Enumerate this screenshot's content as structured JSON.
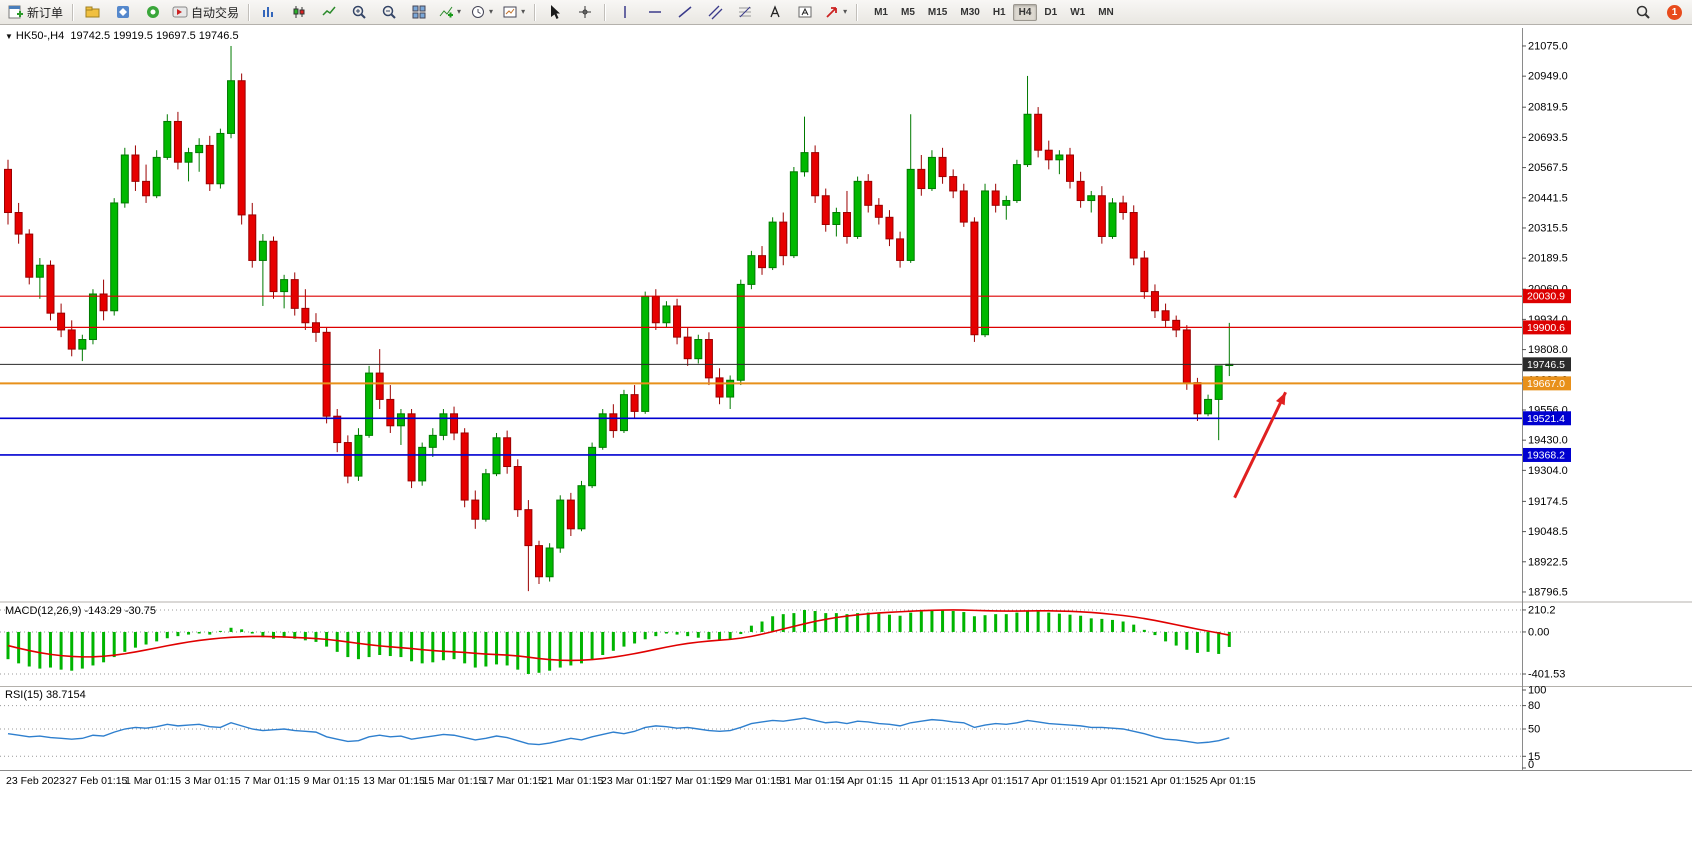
{
  "toolbar": {
    "new_order_label": "新订单",
    "auto_trading_label": "自动交易",
    "timeframes": [
      "M1",
      "M5",
      "M15",
      "M30",
      "H1",
      "H4",
      "D1",
      "W1",
      "MN"
    ],
    "active_timeframe": "H4",
    "notification_count": "1"
  },
  "icons": {
    "symbol_marker": "▼",
    "caret": "▾"
  },
  "symbol_info": {
    "symbol": "HK50-,H4",
    "ohlc": "19742.5 19919.5 19697.5 19746.5"
  },
  "chart_data": [
    {
      "type": "candlestick",
      "title": "HK50-,H4",
      "columns": [
        "open",
        "high",
        "low",
        "close"
      ],
      "ylim": [
        18763,
        21150
      ],
      "colors": {
        "up": "#00b800",
        "up_border": "#007a00",
        "down": "#e60000",
        "down_border": "#9b0000"
      },
      "y_ticks": [
        "21075.0",
        "20949.0",
        "20819.5",
        "20693.5",
        "20567.5",
        "20441.5",
        "20315.5",
        "20189.5",
        "20060.0",
        "19934.0",
        "19808.0",
        "19682.0",
        "19556.0",
        "19430.0",
        "19304.0",
        "19174.5",
        "19048.5",
        "18922.5",
        "18796.5"
      ],
      "x_labels": [
        "23 Feb 2023",
        "27 Feb 01:15",
        "1 Mar 01:15",
        "3 Mar 01:15",
        "7 Mar 01:15",
        "9 Mar 01:15",
        "13 Mar 01:15",
        "15 Mar 01:15",
        "17 Mar 01:15",
        "21 Mar 01:15",
        "23 Mar 01:15",
        "27 Mar 01:15",
        "29 Mar 01:15",
        "31 Mar 01:15",
        "4 Apr 01:15",
        "11 Apr 01:15",
        "13 Apr 01:15",
        "17 Apr 01:15",
        "19 Apr 01:15",
        "21 Apr 01:15",
        "25 Apr 01:15"
      ],
      "hlines": [
        {
          "price": 20030.9,
          "label": "20030.9",
          "color": "#dd0000",
          "width": 1.2
        },
        {
          "price": 19900.6,
          "label": "19900.6",
          "color": "#dd0000",
          "width": 1.2
        },
        {
          "price": 19746.5,
          "label": "19746.5",
          "color": "#2a2a2a",
          "width": 1,
          "role": "last-price"
        },
        {
          "price": 19667.0,
          "label": "19667.0",
          "color": "#e8901a",
          "width": 2
        },
        {
          "price": 19521.4,
          "label": "19521.4",
          "color": "#0000d0",
          "width": 1.6
        },
        {
          "price": 19368.2,
          "label": "19368.2",
          "color": "#0000d0",
          "width": 1.6
        }
      ],
      "arrow": {
        "i1": 115.5,
        "p1": 19190,
        "i2": 120.3,
        "p2": 19630,
        "color": "#e02020"
      },
      "ohlc": [
        [
          20560,
          20600,
          20330,
          20380
        ],
        [
          20380,
          20420,
          20250,
          20290
        ],
        [
          20290,
          20310,
          20080,
          20110
        ],
        [
          20110,
          20190,
          20020,
          20160
        ],
        [
          20160,
          20180,
          19930,
          19960
        ],
        [
          19960,
          20000,
          19860,
          19890
        ],
        [
          19890,
          19930,
          19780,
          19810
        ],
        [
          19810,
          19870,
          19760,
          19850
        ],
        [
          19850,
          20060,
          19830,
          20040
        ],
        [
          20040,
          20100,
          19930,
          19970
        ],
        [
          19970,
          20440,
          19950,
          20420
        ],
        [
          20420,
          20650,
          20400,
          20620
        ],
        [
          20620,
          20660,
          20470,
          20510
        ],
        [
          20510,
          20580,
          20420,
          20450
        ],
        [
          20450,
          20640,
          20440,
          20610
        ],
        [
          20610,
          20790,
          20600,
          20760
        ],
        [
          20760,
          20800,
          20560,
          20590
        ],
        [
          20590,
          20650,
          20510,
          20630
        ],
        [
          20630,
          20690,
          20550,
          20660
        ],
        [
          20660,
          20700,
          20470,
          20500
        ],
        [
          20500,
          20730,
          20480,
          20710
        ],
        [
          20710,
          21075,
          20690,
          20930
        ],
        [
          20930,
          20960,
          20330,
          20370
        ],
        [
          20370,
          20420,
          20150,
          20180
        ],
        [
          20180,
          20290,
          19990,
          20260
        ],
        [
          20260,
          20280,
          20020,
          20050
        ],
        [
          20050,
          20120,
          19980,
          20100
        ],
        [
          20100,
          20130,
          19950,
          19980
        ],
        [
          19980,
          20060,
          19890,
          19920
        ],
        [
          19920,
          19960,
          19840,
          19880
        ],
        [
          19880,
          19900,
          19500,
          19530
        ],
        [
          19530,
          19560,
          19380,
          19420
        ],
        [
          19420,
          19450,
          19250,
          19280
        ],
        [
          19280,
          19480,
          19260,
          19450
        ],
        [
          19450,
          19740,
          19440,
          19710
        ],
        [
          19710,
          19810,
          19560,
          19600
        ],
        [
          19600,
          19660,
          19460,
          19490
        ],
        [
          19490,
          19560,
          19410,
          19540
        ],
        [
          19540,
          19560,
          19230,
          19260
        ],
        [
          19260,
          19420,
          19240,
          19400
        ],
        [
          19400,
          19480,
          19360,
          19450
        ],
        [
          19450,
          19560,
          19430,
          19540
        ],
        [
          19540,
          19570,
          19430,
          19460
        ],
        [
          19460,
          19480,
          19150,
          19180
        ],
        [
          19180,
          19220,
          19060,
          19100
        ],
        [
          19100,
          19310,
          19090,
          19290
        ],
        [
          19290,
          19460,
          19280,
          19440
        ],
        [
          19440,
          19470,
          19290,
          19320
        ],
        [
          19320,
          19350,
          19110,
          19140
        ],
        [
          19140,
          19180,
          18800,
          18990
        ],
        [
          18990,
          19010,
          18830,
          18860
        ],
        [
          18860,
          19000,
          18840,
          18980
        ],
        [
          18980,
          19200,
          18960,
          19180
        ],
        [
          19180,
          19210,
          19030,
          19060
        ],
        [
          19060,
          19260,
          19050,
          19240
        ],
        [
          19240,
          19420,
          19230,
          19400
        ],
        [
          19400,
          19560,
          19390,
          19540
        ],
        [
          19540,
          19580,
          19440,
          19470
        ],
        [
          19470,
          19640,
          19460,
          19620
        ],
        [
          19620,
          19660,
          19520,
          19550
        ],
        [
          19550,
          20050,
          19540,
          20030
        ],
        [
          20030,
          20060,
          19890,
          19920
        ],
        [
          19920,
          20010,
          19900,
          19990
        ],
        [
          19990,
          20020,
          19830,
          19860
        ],
        [
          19860,
          19900,
          19740,
          19770
        ],
        [
          19770,
          19870,
          19750,
          19850
        ],
        [
          19850,
          19880,
          19660,
          19690
        ],
        [
          19690,
          19730,
          19580,
          19610
        ],
        [
          19610,
          19700,
          19560,
          19680
        ],
        [
          19680,
          20100,
          19660,
          20080
        ],
        [
          20080,
          20220,
          20060,
          20200
        ],
        [
          20200,
          20240,
          20120,
          20150
        ],
        [
          20150,
          20360,
          20140,
          20340
        ],
        [
          20340,
          20380,
          20160,
          20200
        ],
        [
          20200,
          20570,
          20190,
          20550
        ],
        [
          20550,
          20780,
          20530,
          20630
        ],
        [
          20630,
          20660,
          20420,
          20450
        ],
        [
          20450,
          20480,
          20300,
          20330
        ],
        [
          20330,
          20400,
          20280,
          20380
        ],
        [
          20380,
          20470,
          20250,
          20280
        ],
        [
          20280,
          20530,
          20270,
          20510
        ],
        [
          20510,
          20540,
          20380,
          20410
        ],
        [
          20410,
          20440,
          20330,
          20360
        ],
        [
          20360,
          20390,
          20240,
          20270
        ],
        [
          20270,
          20300,
          20150,
          20180
        ],
        [
          20180,
          20790,
          20170,
          20560
        ],
        [
          20560,
          20620,
          20450,
          20480
        ],
        [
          20480,
          20640,
          20470,
          20610
        ],
        [
          20610,
          20650,
          20500,
          20530
        ],
        [
          20530,
          20560,
          20440,
          20470
        ],
        [
          20470,
          20500,
          20320,
          20340
        ],
        [
          20340,
          20360,
          19840,
          19870
        ],
        [
          19870,
          20500,
          19860,
          20470
        ],
        [
          20470,
          20500,
          20380,
          20410
        ],
        [
          20410,
          20450,
          20350,
          20430
        ],
        [
          20430,
          20600,
          20420,
          20580
        ],
        [
          20580,
          20950,
          20570,
          20790
        ],
        [
          20790,
          20820,
          20610,
          20640
        ],
        [
          20640,
          20680,
          20560,
          20600
        ],
        [
          20600,
          20640,
          20540,
          20620
        ],
        [
          20620,
          20650,
          20480,
          20510
        ],
        [
          20510,
          20550,
          20400,
          20430
        ],
        [
          20430,
          20470,
          20380,
          20450
        ],
        [
          20450,
          20490,
          20250,
          20280
        ],
        [
          20280,
          20440,
          20270,
          20420
        ],
        [
          20420,
          20450,
          20350,
          20380
        ],
        [
          20380,
          20410,
          20160,
          20190
        ],
        [
          20190,
          20220,
          20020,
          20050
        ],
        [
          20050,
          20080,
          19940,
          19970
        ],
        [
          19970,
          20000,
          19900,
          19930
        ],
        [
          19930,
          19950,
          19860,
          19890
        ],
        [
          19890,
          19910,
          19640,
          19670
        ],
        [
          19670,
          19690,
          19510,
          19540
        ],
        [
          19540,
          19620,
          19530,
          19600
        ],
        [
          19600,
          19740,
          19430,
          19740
        ],
        [
          19742.5,
          19919.5,
          19697.5,
          19746.5
        ]
      ]
    },
    {
      "type": "macd",
      "label": "MACD(12,26,9) -143.29 -30.75",
      "ylim": [
        -478,
        267
      ],
      "levels": [
        210.2,
        0,
        -401.53
      ],
      "y_ticks": [
        "210.2",
        "0.00",
        "-401.53"
      ],
      "colors": {
        "histogram": "#00b400",
        "signal": "#e00000"
      },
      "histogram": [
        -260,
        -300,
        -330,
        -350,
        -340,
        -360,
        -370,
        -350,
        -320,
        -290,
        -240,
        -190,
        -150,
        -120,
        -90,
        -60,
        -40,
        -25,
        -15,
        -25,
        10,
        40,
        25,
        -15,
        -50,
        -65,
        -55,
        -65,
        -80,
        -95,
        -140,
        -190,
        -240,
        -260,
        -240,
        -220,
        -230,
        -240,
        -280,
        -300,
        -290,
        -270,
        -260,
        -300,
        -340,
        -330,
        -310,
        -320,
        -360,
        -401.53,
        -390,
        -370,
        -340,
        -320,
        -300,
        -260,
        -220,
        -180,
        -140,
        -110,
        -70,
        -40,
        -15,
        -25,
        -40,
        -55,
        -70,
        -80,
        -70,
        -20,
        60,
        100,
        150,
        170,
        180,
        210,
        200,
        180,
        180,
        170,
        180,
        185,
        175,
        165,
        155,
        185,
        195,
        205,
        208,
        200,
        190,
        150,
        160,
        170,
        170,
        185,
        205,
        195,
        185,
        175,
        165,
        155,
        130,
        125,
        115,
        100,
        70,
        20,
        -30,
        -90,
        -130,
        -170,
        -200,
        -190,
        -210,
        -143.29
      ],
      "signal": [
        -130,
        -155,
        -178,
        -198,
        -214,
        -226,
        -234,
        -238,
        -237,
        -232,
        -222,
        -208,
        -191,
        -172,
        -152,
        -132,
        -113,
        -96,
        -81,
        -69,
        -59,
        -51,
        -46,
        -43,
        -43,
        -45,
        -48,
        -52,
        -57,
        -63,
        -71,
        -82,
        -95,
        -109,
        -122,
        -133,
        -142,
        -150,
        -159,
        -169,
        -178,
        -185,
        -190,
        -196,
        -204,
        -211,
        -216,
        -221,
        -229,
        -241,
        -254,
        -264,
        -270,
        -272,
        -270,
        -264,
        -254,
        -241,
        -225,
        -207,
        -187,
        -166,
        -145,
        -126,
        -110,
        -97,
        -87,
        -79,
        -71,
        -59,
        -42,
        -21,
        3,
        28,
        53,
        78,
        101,
        121,
        138,
        152,
        164,
        174,
        182,
        188,
        193,
        198,
        203,
        207,
        209,
        210,
        209,
        206,
        203,
        201,
        200,
        200,
        201,
        202,
        202,
        200,
        197,
        192,
        186,
        178,
        168,
        157,
        144,
        128,
        110,
        90,
        69,
        48,
        27,
        8,
        -10,
        -30.75
      ]
    },
    {
      "type": "rsi",
      "label": "RSI(15) 38.7154",
      "ylim": [
        0,
        100
      ],
      "levels": [
        80,
        50,
        15
      ],
      "y_ticks": [
        "100",
        "80",
        "50",
        "15",
        "0"
      ],
      "colors": {
        "line": "#2e7fce"
      },
      "values": [
        44,
        42,
        40,
        41,
        39,
        38,
        37,
        38,
        42,
        41,
        46,
        50,
        52,
        51,
        53,
        56,
        54,
        55,
        56,
        53,
        52,
        58,
        54,
        50,
        48,
        49,
        50,
        48,
        47,
        46,
        40,
        37,
        34,
        35,
        40,
        42,
        40,
        41,
        37,
        39,
        41,
        43,
        42,
        39,
        36,
        38,
        41,
        39,
        35,
        31,
        30,
        32,
        35,
        38,
        36,
        40,
        43,
        46,
        44,
        47,
        52,
        54,
        53,
        51,
        52,
        50,
        48,
        47,
        48,
        52,
        57,
        59,
        61,
        60,
        62,
        64,
        61,
        58,
        59,
        57,
        60,
        59,
        57,
        56,
        54,
        58,
        60,
        62,
        61,
        59,
        58,
        52,
        55,
        57,
        56,
        58,
        61,
        59,
        57,
        56,
        55,
        54,
        52,
        52,
        51,
        50,
        47,
        44,
        40,
        37,
        36,
        34,
        32,
        33,
        35,
        38.7154
      ]
    }
  ]
}
